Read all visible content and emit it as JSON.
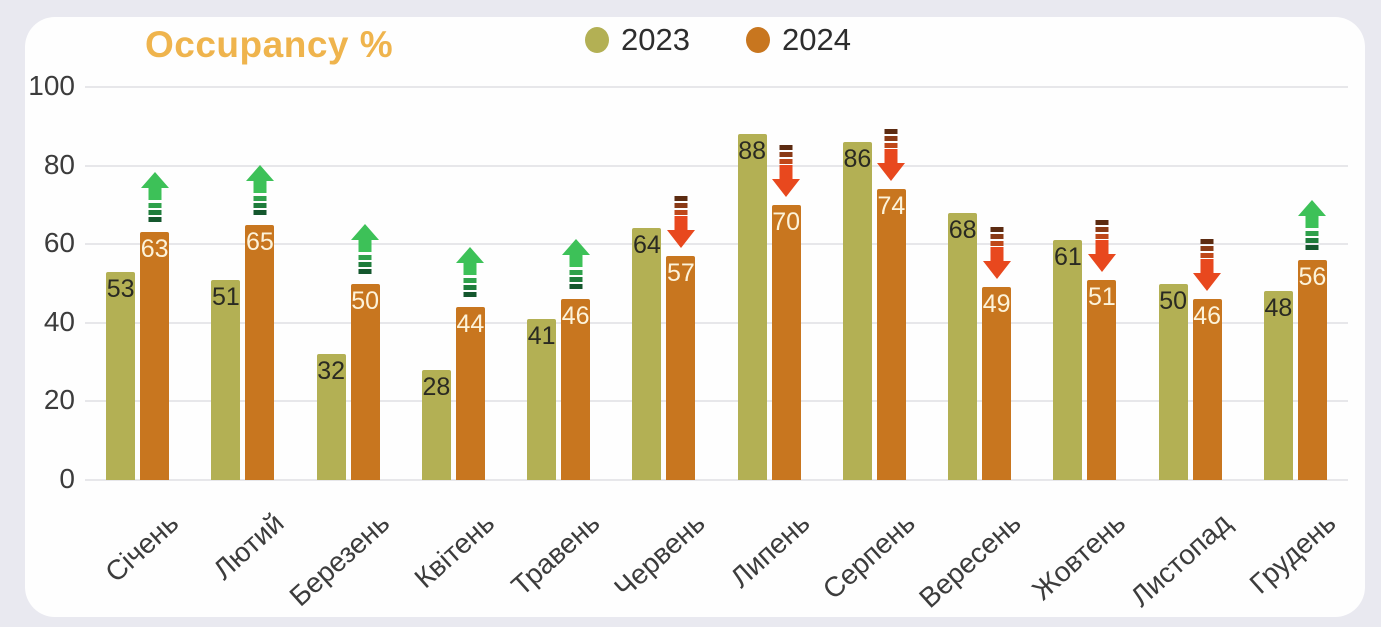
{
  "page": {
    "background_color": "#e9e9f0",
    "card_color": "#fefefe",
    "title_color": "#efb44d"
  },
  "chart_data": {
    "type": "bar",
    "title": "Occupancy %",
    "categories": [
      "Січень",
      "Лютий",
      "Березень",
      "Квітень",
      "Травень",
      "Червень",
      "Липень",
      "Серпень",
      "Вересень",
      "Жовтень",
      "Листопад",
      "Грудень"
    ],
    "series": [
      {
        "name": "2023",
        "color": "#b3b054",
        "label_color": "#2a2a22",
        "values": [
          53,
          51,
          32,
          28,
          41,
          64,
          88,
          86,
          68,
          61,
          50,
          48
        ]
      },
      {
        "name": "2024",
        "color": "#c8761f",
        "label_color": "#fdf3da",
        "values": [
          63,
          65,
          50,
          44,
          46,
          57,
          70,
          74,
          49,
          51,
          46,
          56
        ]
      }
    ],
    "trend_vs_prev_year": [
      "up",
      "up",
      "up",
      "up",
      "up",
      "down",
      "down",
      "down",
      "down",
      "down",
      "down",
      "up"
    ],
    "trend_colors": {
      "up": [
        "#3dc158",
        "#2fa14b",
        "#1e7c3b",
        "#14572d"
      ],
      "down": [
        "#5c2b11",
        "#8a3a16",
        "#bf4719",
        "#e8481e"
      ]
    },
    "xlabel": "",
    "ylabel": "",
    "ylim": [
      0,
      100
    ],
    "yticks": [
      0,
      20,
      40,
      60,
      80,
      100
    ],
    "grid": true,
    "legend_position": "top-center",
    "gridline_color": "#e7e7ea"
  }
}
